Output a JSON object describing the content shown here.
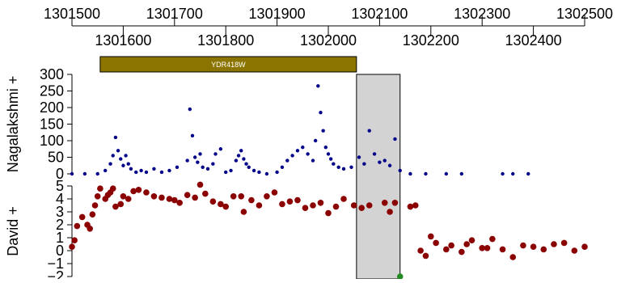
{
  "chart_data": [
    {
      "type": "genome-axis",
      "ticks_top": [
        1301500,
        1301700,
        1301900,
        1302100,
        1302300,
        1302500
      ],
      "ticks_bottom": [
        1301600,
        1301800,
        1302000,
        1302200,
        1302400
      ],
      "xlim": [
        1301500,
        1302500
      ]
    },
    {
      "type": "annotation-track",
      "features": [
        {
          "label": "YDR418W",
          "start": 1301555,
          "end": 1302055,
          "color": "#8B7500"
        }
      ],
      "highlight_region": {
        "start": 1302055,
        "end": 1302140,
        "color": "#D3D3D3"
      }
    },
    {
      "type": "scatter",
      "title": "",
      "ylabel": "Nagalakshmi +",
      "ylim": [
        0,
        300
      ],
      "yticks": [
        0,
        50,
        100,
        150,
        200,
        250,
        300
      ],
      "colors": [
        "#00008B"
      ],
      "series": [
        {
          "x": [
            1301500,
            1301525,
            1301550,
            1301565,
            1301575,
            1301580,
            1301585,
            1301590,
            1301595,
            1301600,
            1301605,
            1301610,
            1301615,
            1301625,
            1301635,
            1301645,
            1301660,
            1301675,
            1301690,
            1301705,
            1301725,
            1301730,
            1301735,
            1301740,
            1301745,
            1301750,
            1301755,
            1301765,
            1301775,
            1301780,
            1301790,
            1301800,
            1301810,
            1301820,
            1301825,
            1301830,
            1301835,
            1301840,
            1301845,
            1301855,
            1301865,
            1301880,
            1301900,
            1301910,
            1301920,
            1301930,
            1301940,
            1301950,
            1301960,
            1301970,
            1301975,
            1301980,
            1301985,
            1301990,
            1301995,
            1302000,
            1302005,
            1302010,
            1302020,
            1302030,
            1302045,
            1302060,
            1302070,
            1302080,
            1302090,
            1302100,
            1302110,
            1302120,
            1302130,
            1302140,
            1302160,
            1302190,
            1302230,
            1302260,
            1302340,
            1302360,
            1302390
          ],
          "y": [
            0,
            0,
            0,
            10,
            30,
            55,
            110,
            70,
            45,
            25,
            55,
            30,
            15,
            5,
            10,
            5,
            15,
            5,
            10,
            20,
            40,
            195,
            115,
            50,
            35,
            60,
            20,
            15,
            30,
            60,
            75,
            5,
            10,
            40,
            55,
            70,
            45,
            30,
            20,
            10,
            5,
            0,
            5,
            20,
            40,
            55,
            70,
            80,
            60,
            40,
            100,
            265,
            185,
            130,
            80,
            60,
            45,
            30,
            20,
            15,
            20,
            50,
            30,
            130,
            60,
            35,
            40,
            25,
            105,
            10,
            0,
            0,
            0,
            0,
            0,
            0,
            0
          ]
        }
      ]
    },
    {
      "type": "scatter",
      "title": "",
      "ylabel": "David +",
      "ylim": [
        -2,
        5
      ],
      "yticks": [
        -2,
        -1,
        0,
        1,
        2,
        3,
        4,
        5
      ],
      "ytick_labels": [
        "−2",
        "−1",
        "0",
        "1",
        "2",
        "3",
        "4",
        "5"
      ],
      "series": [
        {
          "color": "#8B0000",
          "x": [
            1301500,
            1301505,
            1301510,
            1301520,
            1301530,
            1301535,
            1301540,
            1301545,
            1301550,
            1301555,
            1301565,
            1301570,
            1301575,
            1301580,
            1301585,
            1301595,
            1301600,
            1301610,
            1301620,
            1301630,
            1301645,
            1301660,
            1301675,
            1301690,
            1301700,
            1301710,
            1301725,
            1301740,
            1301750,
            1301760,
            1301775,
            1301790,
            1301800,
            1301815,
            1301830,
            1301835,
            1301850,
            1301865,
            1301880,
            1301895,
            1301910,
            1301925,
            1301940,
            1301955,
            1301970,
            1301985,
            1302000,
            1302015,
            1302030,
            1302050,
            1302065,
            1302080,
            1302110,
            1302120,
            1302130,
            1302160,
            1302170,
            1302180,
            1302190,
            1302200,
            1302210,
            1302230,
            1302240,
            1302260,
            1302270,
            1302280,
            1302300,
            1302310,
            1302320,
            1302340,
            1302360,
            1302380,
            1302400,
            1302420,
            1302440,
            1302460,
            1302480,
            1302500
          ],
          "y": [
            0.3,
            0.8,
            1.9,
            2.6,
            2.0,
            1.7,
            2.8,
            3.5,
            4.2,
            4.8,
            4.0,
            4.3,
            4.5,
            4.8,
            3.4,
            3.6,
            4.2,
            4.0,
            4.6,
            4.7,
            4.5,
            4.2,
            4.1,
            4.0,
            3.9,
            3.7,
            4.3,
            4.1,
            5.1,
            4.4,
            3.8,
            3.6,
            3.4,
            4.2,
            4.2,
            3.0,
            3.9,
            3.5,
            4.2,
            4.5,
            3.6,
            3.8,
            3.9,
            3.3,
            3.5,
            3.7,
            2.9,
            3.4,
            4.0,
            3.5,
            3.3,
            3.5,
            3.7,
            3.0,
            3.7,
            3.4,
            3.5,
            0.0,
            -0.4,
            1.1,
            0.6,
            0.1,
            0.4,
            -0.1,
            0.5,
            0.8,
            0.2,
            0.2,
            0.9,
            0.1,
            -0.5,
            0.4,
            0.3,
            0.1,
            0.5,
            0.6,
            0.0,
            0.3
          ]
        },
        {
          "color": "#228B22",
          "x": [
            1302140
          ],
          "y": [
            -2.0
          ]
        }
      ]
    }
  ]
}
